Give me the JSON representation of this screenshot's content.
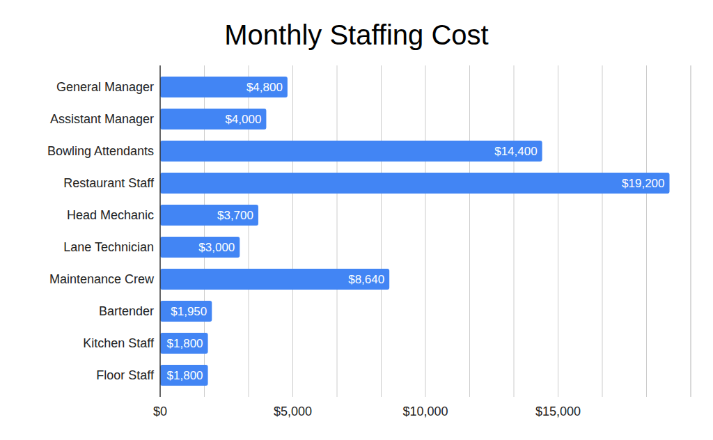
{
  "chart_data": {
    "type": "bar",
    "orientation": "horizontal",
    "title": "Monthly Staffing Cost",
    "categories": [
      "General Manager",
      "Assistant Manager",
      "Bowling Attendants",
      "Restaurant Staff",
      "Head Mechanic",
      "Lane Technician",
      "Maintenance Crew",
      "Bartender",
      "Kitchen Staff",
      "Floor Staff"
    ],
    "values": [
      4800,
      4000,
      14400,
      19200,
      3700,
      3000,
      8640,
      1950,
      1800,
      1800
    ],
    "value_labels": [
      "$4,800",
      "$4,000",
      "$14,400",
      "$19,200",
      "$3,700",
      "$3,000",
      "$8,640",
      "$1,950",
      "$1,800",
      "$1,800"
    ],
    "color": "#4285f4",
    "data_labels": true,
    "grid": true,
    "xlim": [
      0,
      20000
    ],
    "xticks": [
      {
        "value": 0,
        "label": "$0"
      },
      {
        "value": 5000,
        "label": "$5,000"
      },
      {
        "value": 10000,
        "label": "$10,000"
      },
      {
        "value": 15000,
        "label": "$15,000"
      }
    ]
  }
}
